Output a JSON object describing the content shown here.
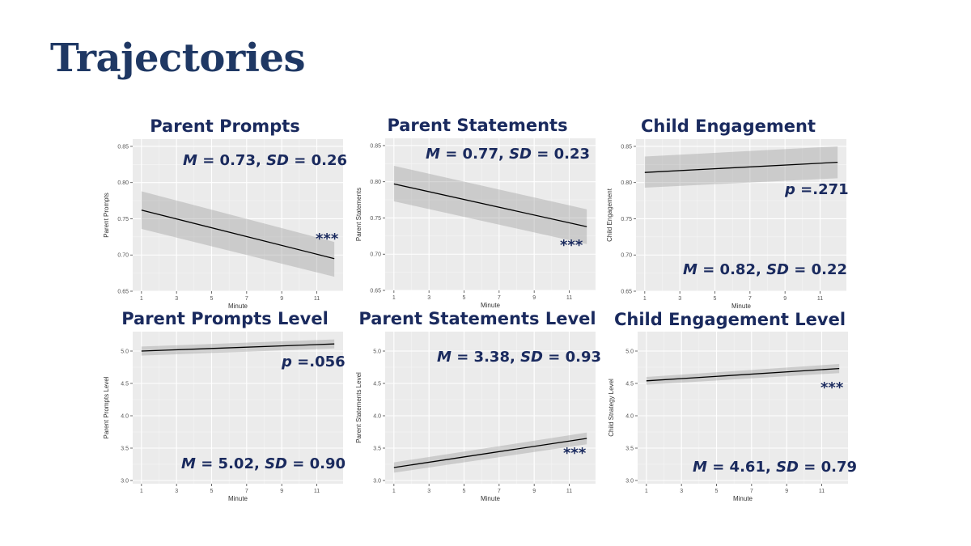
{
  "page": {
    "title": "Trajectories"
  },
  "chart_data": [
    {
      "type": "line",
      "title": "Parent Prompts",
      "xlabel": "Minute",
      "ylabel": "Parent Prompts",
      "x_ticks": [
        1,
        3,
        5,
        7,
        9,
        11
      ],
      "y_ticks": [
        0.65,
        0.7,
        0.75,
        0.8,
        0.85
      ],
      "y_tick_labels": [
        "0.65",
        "0.70",
        "0.75",
        "0.80",
        "0.85"
      ],
      "xlim": [
        0.5,
        12.5
      ],
      "ylim": [
        0.65,
        0.86
      ],
      "grid": true,
      "series": [
        {
          "x": [
            1,
            12
          ],
          "y": [
            0.762,
            0.695
          ],
          "ci_upper": [
            0.788,
            0.718
          ],
          "ci_lower": [
            0.736,
            0.67
          ]
        }
      ],
      "annotations": {
        "m_label": "M",
        "m_value": "= 0.73,",
        "sd_label": "SD",
        "sd_value": "= 0.26",
        "significance": "***",
        "p_label": "",
        "p_value": ""
      }
    },
    {
      "type": "line",
      "title": "Parent Statements",
      "xlabel": "Minute",
      "ylabel": "Parent Statements",
      "x_ticks": [
        1,
        3,
        5,
        7,
        9,
        11
      ],
      "y_ticks": [
        0.65,
        0.7,
        0.75,
        0.8,
        0.85
      ],
      "y_tick_labels": [
        "0.65",
        "0.70",
        "0.75",
        "0.80",
        "0.85"
      ],
      "xlim": [
        0.5,
        12.5
      ],
      "ylim": [
        0.65,
        0.86
      ],
      "grid": true,
      "series": [
        {
          "x": [
            1,
            12
          ],
          "y": [
            0.797,
            0.738
          ],
          "ci_upper": [
            0.822,
            0.762
          ],
          "ci_lower": [
            0.773,
            0.714
          ]
        }
      ],
      "annotations": {
        "m_label": "M",
        "m_value": "= 0.77,",
        "sd_label": "SD",
        "sd_value": "= 0.23",
        "significance": "***",
        "p_label": "",
        "p_value": ""
      }
    },
    {
      "type": "line",
      "title": "Child Engagement",
      "xlabel": "Minute",
      "ylabel": "Child Engagement",
      "x_ticks": [
        1,
        3,
        5,
        7,
        9,
        11
      ],
      "y_ticks": [
        0.65,
        0.7,
        0.75,
        0.8,
        0.85
      ],
      "y_tick_labels": [
        "0.65",
        "0.70",
        "0.75",
        "0.80",
        "0.85"
      ],
      "xlim": [
        0.5,
        12.5
      ],
      "ylim": [
        0.65,
        0.86
      ],
      "grid": true,
      "series": [
        {
          "x": [
            1,
            12
          ],
          "y": [
            0.814,
            0.828
          ],
          "ci_upper": [
            0.836,
            0.85
          ],
          "ci_lower": [
            0.793,
            0.806
          ]
        }
      ],
      "annotations": {
        "m_label": "M",
        "m_value": "= 0.82,",
        "sd_label": "SD",
        "sd_value": "= 0.22",
        "significance": "",
        "p_label": "p",
        "p_value": "=.271"
      }
    },
    {
      "type": "line",
      "title": "Parent Prompts Level",
      "xlabel": "Minute",
      "ylabel": "Parent Prompts Level",
      "x_ticks": [
        1,
        3,
        5,
        7,
        9,
        11
      ],
      "y_ticks": [
        3.0,
        3.5,
        4.0,
        4.5,
        5.0
      ],
      "y_tick_labels": [
        "3.0",
        "3.5",
        "4.0",
        "4.5",
        "5.0"
      ],
      "xlim": [
        0.5,
        12.5
      ],
      "ylim": [
        2.95,
        5.3
      ],
      "grid": true,
      "series": [
        {
          "x": [
            1,
            12
          ],
          "y": [
            5.0,
            5.11
          ],
          "ci_upper": [
            5.07,
            5.18
          ],
          "ci_lower": [
            4.93,
            5.04
          ]
        }
      ],
      "annotations": {
        "m_label": "M",
        "m_value": "= 5.02,",
        "sd_label": "SD",
        "sd_value": "= 0.90",
        "significance": "",
        "p_label": "p",
        "p_value": "=.056"
      }
    },
    {
      "type": "line",
      "title": "Parent Statements Level",
      "xlabel": "Minute",
      "ylabel": "Parent Statements Level",
      "x_ticks": [
        1,
        3,
        5,
        7,
        9,
        11
      ],
      "y_ticks": [
        3.0,
        3.5,
        4.0,
        4.5,
        5.0
      ],
      "y_tick_labels": [
        "3.0",
        "3.5",
        "4.0",
        "4.5",
        "5.0"
      ],
      "xlim": [
        0.5,
        12.5
      ],
      "ylim": [
        2.95,
        5.3
      ],
      "grid": true,
      "series": [
        {
          "x": [
            1,
            12
          ],
          "y": [
            3.2,
            3.65
          ],
          "ci_upper": [
            3.28,
            3.74
          ],
          "ci_lower": [
            3.12,
            3.56
          ]
        }
      ],
      "annotations": {
        "m_label": "M",
        "m_value": "= 3.38,",
        "sd_label": "SD",
        "sd_value": "= 0.93",
        "significance": "***",
        "p_label": "",
        "p_value": ""
      }
    },
    {
      "type": "line",
      "title": "Child Engagement Level",
      "xlabel": "Minute",
      "ylabel": "Child Strategy Level",
      "x_ticks": [
        1,
        3,
        5,
        7,
        9,
        11
      ],
      "y_ticks": [
        3.0,
        3.5,
        4.0,
        4.5,
        5.0
      ],
      "y_tick_labels": [
        "3.0",
        "3.5",
        "4.0",
        "4.5",
        "5.0"
      ],
      "xlim": [
        0.5,
        12.5
      ],
      "ylim": [
        2.95,
        5.3
      ],
      "grid": true,
      "series": [
        {
          "x": [
            1,
            12
          ],
          "y": [
            4.54,
            4.73
          ],
          "ci_upper": [
            4.6,
            4.8
          ],
          "ci_lower": [
            4.48,
            4.66
          ]
        }
      ],
      "annotations": {
        "m_label": "M",
        "m_value": "= 4.61,",
        "sd_label": "SD",
        "sd_value": "= 0.79",
        "significance": "***",
        "p_label": "",
        "p_value": ""
      }
    }
  ]
}
